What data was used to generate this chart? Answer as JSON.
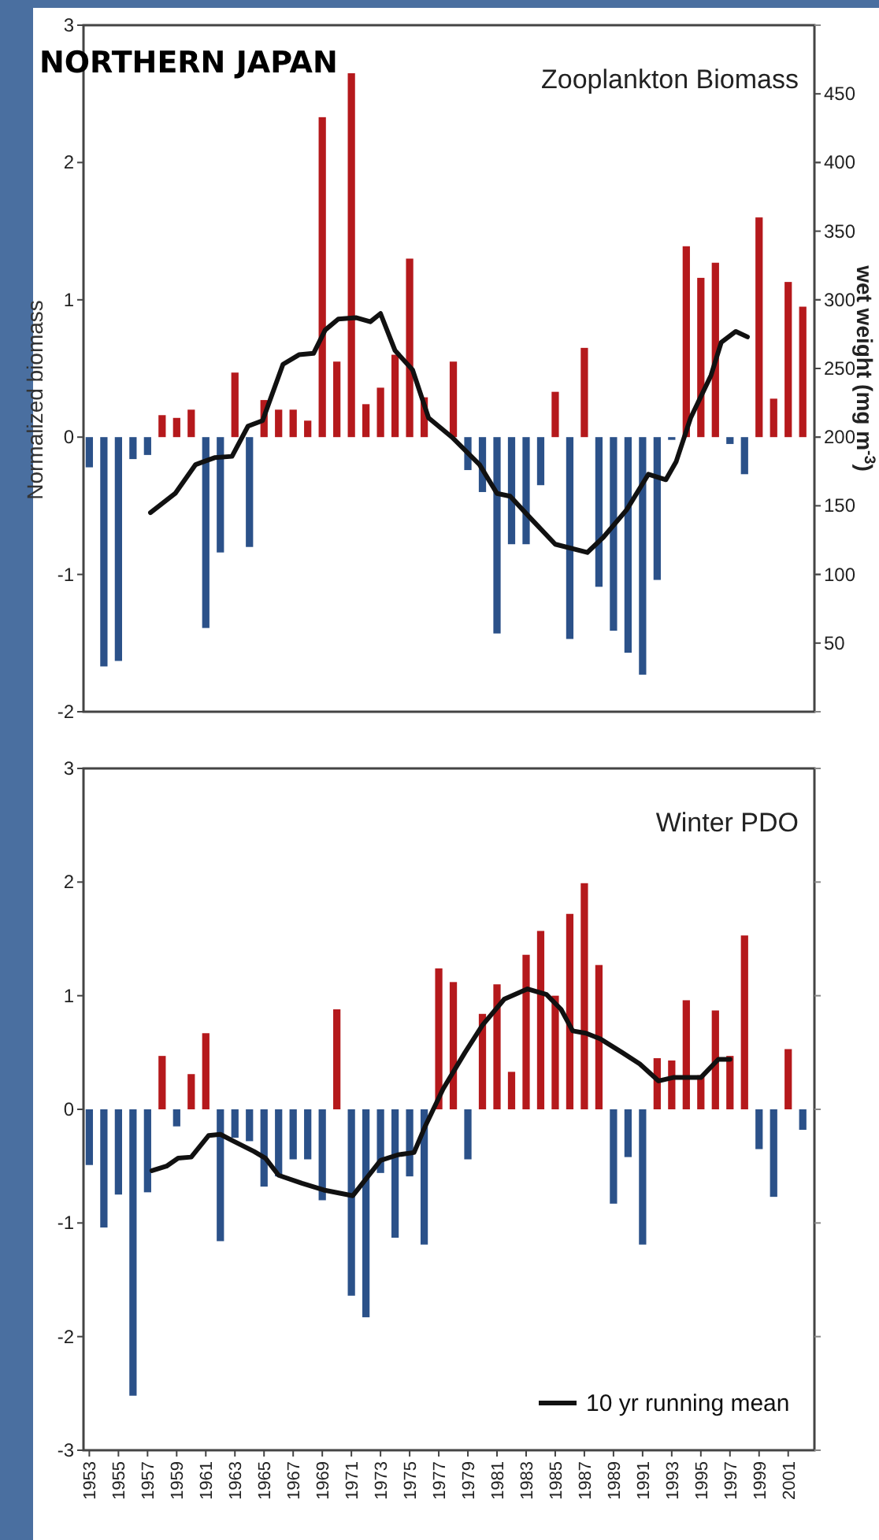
{
  "chart_data": [
    {
      "type": "bar",
      "title": "NORTHERN JAPAN",
      "subtitle": "Zooplankton Biomass",
      "ylabel": "Normalized biomass",
      "y2label": "wet weight (mg m$^{-3}$)",
      "xlim": [
        1952.6,
        2002.8
      ],
      "ylim": [
        -2,
        3
      ],
      "yticks": [
        -2,
        -1,
        0,
        1,
        2,
        3
      ],
      "y2lim": [
        0,
        500
      ],
      "y2ticks": [
        50,
        100,
        150,
        200,
        250,
        300,
        350,
        400,
        450
      ],
      "legend": false,
      "x": [
        1953,
        1954,
        1955,
        1956,
        1957,
        1958,
        1959,
        1960,
        1961,
        1962,
        1963,
        1964,
        1965,
        1966,
        1967,
        1968,
        1969,
        1970,
        1971,
        1972,
        1973,
        1974,
        1975,
        1976,
        1977,
        1978,
        1979,
        1980,
        1981,
        1982,
        1983,
        1984,
        1985,
        1986,
        1987,
        1988,
        1989,
        1990,
        1991,
        1992,
        1993,
        1994,
        1995,
        1996,
        1997,
        1998,
        1999,
        2000,
        2001,
        2002
      ],
      "series": [
        {
          "values": [
            -0.22,
            -1.67,
            -1.63,
            -0.16,
            -0.13,
            0.16,
            0.14,
            0.2,
            -1.39,
            -0.84,
            0.47,
            -0.8,
            0.27,
            0.2,
            0.2,
            0.12,
            2.33,
            0.55,
            2.65,
            0.24,
            0.36,
            0.6,
            1.3,
            0.29,
            0,
            0.55,
            -0.24,
            -0.4,
            -1.43,
            -0.78,
            -0.78,
            -0.35,
            0.33,
            -1.47,
            0.65,
            -1.09,
            -1.41,
            -1.57,
            -1.73,
            -1.04,
            -0.02,
            1.39,
            1.16,
            1.27,
            -0.05,
            -0.27,
            1.6,
            0.28,
            1.13,
            0.95
          ],
          "colors": [
            "#2b5189",
            "#2b5189",
            "#2b5189",
            "#2b5189",
            "#2b5189",
            "#b5191c",
            "#b5191c",
            "#b5191c",
            "#2b5189",
            "#2b5189",
            "#b5191c",
            "#2b5189",
            "#b5191c",
            "#b5191c",
            "#b5191c",
            "#b5191c",
            "#b5191c",
            "#b5191c",
            "#b5191c",
            "#b5191c",
            "#b5191c",
            "#b5191c",
            "#b5191c",
            "#b5191c",
            "#2b5189",
            "#b5191c",
            "#2b5189",
            "#2b5189",
            "#2b5189",
            "#2b5189",
            "#2b5189",
            "#2b5189",
            "#b5191c",
            "#2b5189",
            "#b5191c",
            "#2b5189",
            "#2b5189",
            "#2b5189",
            "#2b5189",
            "#2b5189",
            "#2b5189",
            "#b5191c",
            "#b5191c",
            "#b5191c",
            "#2b5189",
            "#2b5189",
            "#b5191c",
            "#b5191c",
            "#b5191c",
            "#b5191c"
          ]
        },
        {
          "type": "line",
          "axis": "y2",
          "color": "#111111",
          "x": [
            1957.2,
            1958.9,
            1960.3,
            1961.6,
            1962.8,
            1963.9,
            1964.9,
            1966.3,
            1967.4,
            1968.4,
            1969.2,
            1970.1,
            1971.3,
            1972.3,
            1973.0,
            1974.0,
            1975.2,
            1976.3,
            1977.9,
            1979.8,
            1981.0,
            1981.9,
            1983.3,
            1985.0,
            1987.2,
            1988.3,
            1989.9,
            1991.4,
            1992.6,
            1993.3,
            1994.3,
            1995.7,
            1996.4,
            1997.4,
            1998.2
          ],
          "values": [
            145,
            159,
            180,
            185,
            186,
            208,
            212,
            253,
            260,
            261,
            278,
            286,
            287,
            284,
            290,
            263,
            249,
            214,
            200,
            180,
            159,
            157,
            141,
            122,
            116,
            127,
            147,
            173,
            169,
            182,
            214,
            245,
            269,
            277,
            273
          ]
        }
      ]
    },
    {
      "type": "bar",
      "title": "Winter PDO",
      "xlim": [
        1952.6,
        2002.8
      ],
      "xticks": [
        1953,
        1955,
        1957,
        1959,
        1961,
        1963,
        1965,
        1967,
        1969,
        1971,
        1973,
        1975,
        1977,
        1979,
        1981,
        1983,
        1985,
        1987,
        1989,
        1991,
        1993,
        1995,
        1997,
        1999,
        2001
      ],
      "ylim": [
        -3,
        3
      ],
      "yticks": [
        -3,
        -2,
        -1,
        0,
        1,
        2,
        3
      ],
      "legend": "bottom right",
      "x": [
        1953,
        1954,
        1955,
        1956,
        1957,
        1958,
        1959,
        1960,
        1961,
        1962,
        1963,
        1964,
        1965,
        1966,
        1967,
        1968,
        1969,
        1970,
        1971,
        1972,
        1973,
        1974,
        1975,
        1976,
        1977,
        1978,
        1979,
        1980,
        1981,
        1982,
        1983,
        1984,
        1985,
        1986,
        1987,
        1988,
        1989,
        1990,
        1991,
        1992,
        1993,
        1994,
        1995,
        1996,
        1997,
        1998,
        1999,
        2000,
        2001,
        2002
      ],
      "series": [
        {
          "values": [
            -0.49,
            -1.04,
            -0.75,
            -2.52,
            -0.73,
            0.47,
            -0.15,
            0.31,
            0.67,
            -1.16,
            -0.25,
            -0.28,
            -0.68,
            -0.59,
            -0.44,
            -0.44,
            -0.8,
            0.88,
            -1.64,
            -1.83,
            -0.56,
            -1.13,
            -0.59,
            -1.19,
            1.24,
            1.12,
            -0.44,
            0.84,
            1.1,
            0.33,
            1.36,
            1.57,
            1.0,
            1.72,
            1.99,
            1.27,
            -0.83,
            -0.42,
            -1.19,
            0.45,
            0.43,
            0.96,
            0.3,
            0.87,
            0.47,
            1.53,
            -0.35,
            -0.77,
            0.53,
            -0.18
          ],
          "colors": [
            "#2b5189",
            "#2b5189",
            "#2b5189",
            "#2b5189",
            "#2b5189",
            "#b5191c",
            "#2b5189",
            "#b5191c",
            "#b5191c",
            "#2b5189",
            "#2b5189",
            "#2b5189",
            "#2b5189",
            "#2b5189",
            "#2b5189",
            "#2b5189",
            "#2b5189",
            "#b5191c",
            "#2b5189",
            "#2b5189",
            "#2b5189",
            "#2b5189",
            "#2b5189",
            "#2b5189",
            "#b5191c",
            "#b5191c",
            "#2b5189",
            "#b5191c",
            "#b5191c",
            "#b5191c",
            "#b5191c",
            "#b5191c",
            "#b5191c",
            "#b5191c",
            "#b5191c",
            "#b5191c",
            "#2b5189",
            "#2b5189",
            "#2b5189",
            "#b5191c",
            "#b5191c",
            "#b5191c",
            "#b5191c",
            "#b5191c",
            "#b5191c",
            "#b5191c",
            "#2b5189",
            "#2b5189",
            "#b5191c",
            "#2b5189"
          ]
        },
        {
          "type": "line",
          "name": "10 yr running mean",
          "color": "#111111",
          "x": [
            1957.3,
            1958.3,
            1959.1,
            1960.0,
            1961.2,
            1962.0,
            1962.9,
            1964.3,
            1965.1,
            1966.0,
            1967.6,
            1969.1,
            1971.1,
            1973.0,
            1974.2,
            1975.3,
            1976.1,
            1977.3,
            1978.8,
            1980.0,
            1981.5,
            1983.1,
            1984.4,
            1985.4,
            1986.2,
            1987.1,
            1988.1,
            1989.6,
            1990.8,
            1992.1,
            1993.1,
            1995.0,
            1996.2,
            1997.0
          ],
          "values": [
            -0.54,
            -0.5,
            -0.43,
            -0.42,
            -0.23,
            -0.22,
            -0.28,
            -0.37,
            -0.43,
            -0.58,
            -0.65,
            -0.71,
            -0.76,
            -0.45,
            -0.4,
            -0.38,
            -0.14,
            0.18,
            0.5,
            0.74,
            0.97,
            1.06,
            1.01,
            0.88,
            0.69,
            0.67,
            0.62,
            0.5,
            0.4,
            0.25,
            0.28,
            0.28,
            0.44,
            0.44
          ]
        }
      ]
    }
  ]
}
